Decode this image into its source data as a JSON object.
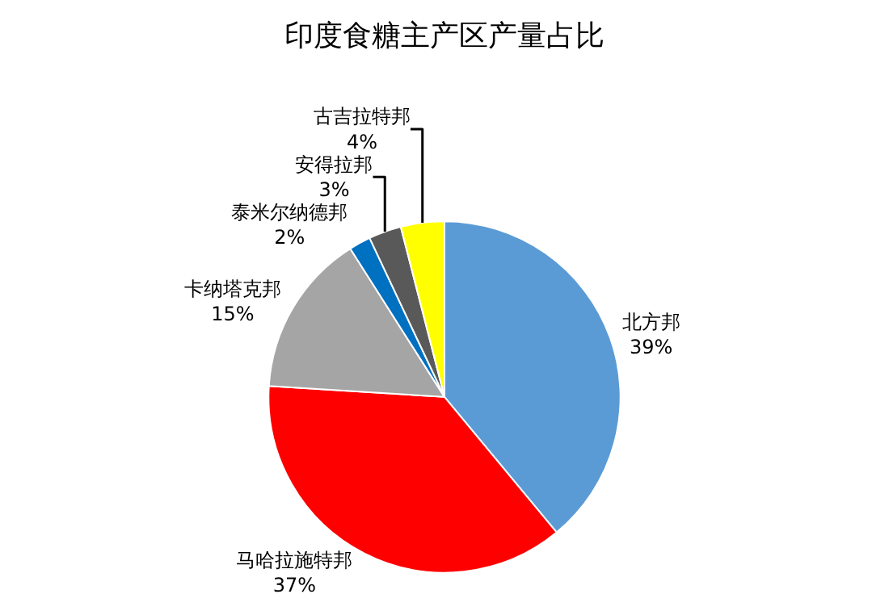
{
  "chart_data": {
    "type": "pie",
    "title": "印度食糖主产区产量占比",
    "categories": [
      "北方邦",
      "马哈拉施特邦",
      "卡纳塔克邦",
      "泰米尔纳德邦",
      "安得拉邦",
      "古吉拉特邦"
    ],
    "values": [
      39,
      37,
      15,
      2,
      3,
      4
    ],
    "value_labels": [
      "39%",
      "37%",
      "15%",
      "2%",
      "3%",
      "4%"
    ],
    "colors": [
      "#5b9bd5",
      "#ff0000",
      "#a5a5a5",
      "#0070c0",
      "#595959",
      "#ffff00"
    ],
    "legend": false
  }
}
